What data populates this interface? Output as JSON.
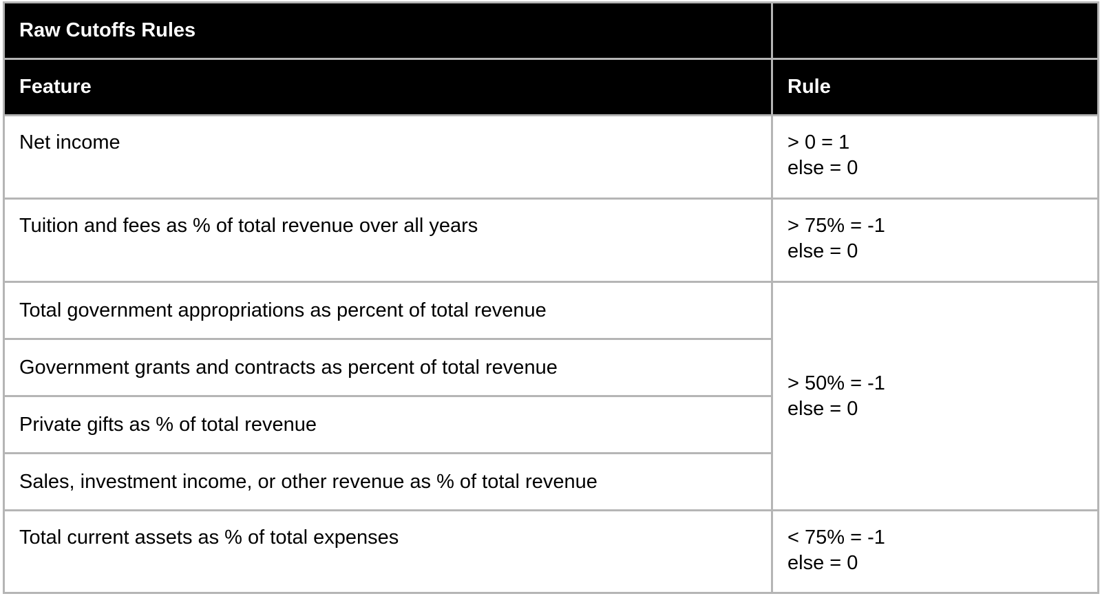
{
  "table": {
    "title": "Raw Cutoffs Rules",
    "headers": {
      "feature": "Feature",
      "rule": "Rule"
    },
    "rows": [
      {
        "feature": "Net income",
        "rule": [
          "> 0 = 1",
          "else = 0"
        ]
      },
      {
        "feature": "Tuition and fees as % of total revenue over all years",
        "rule": [
          "> 75% = -1",
          "else = 0"
        ]
      },
      {
        "feature": "Total government appropriations as percent of total revenue",
        "rule": [
          "> 50% = -1",
          "else = 0"
        ]
      },
      {
        "feature": "Government grants and contracts as percent of total revenue"
      },
      {
        "feature": "Private gifts as % of total revenue"
      },
      {
        "feature": "Sales, investment income, or other revenue as % of total revenue"
      },
      {
        "feature": "Total current assets as % of total expenses",
        "rule": [
          "< 75% = -1",
          "else = 0"
        ]
      }
    ]
  }
}
